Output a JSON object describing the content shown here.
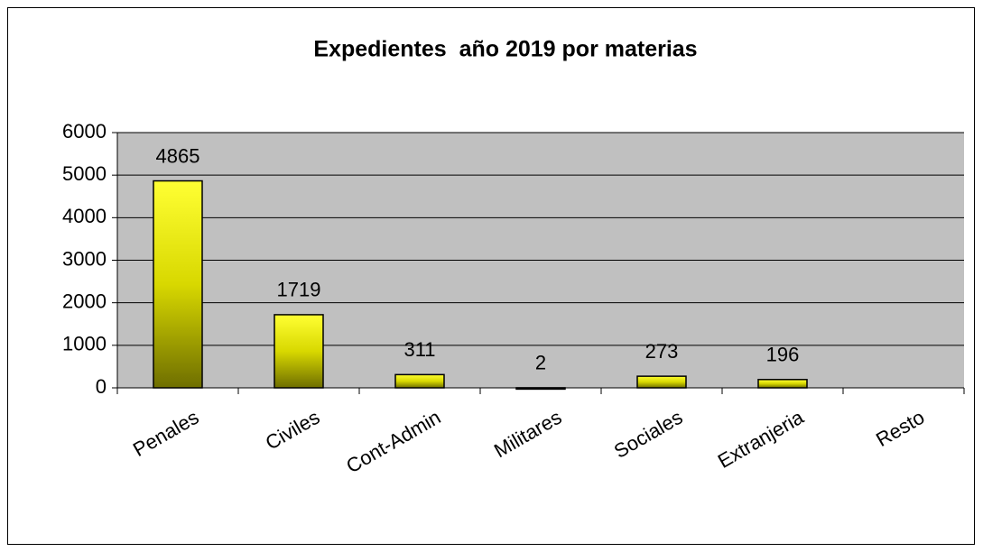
{
  "chart_data": {
    "type": "bar",
    "title": "Expedientes  año 2019 por materias",
    "categories": [
      "Penales",
      "Civiles",
      "Cont-Admin",
      "Militares",
      "Sociales",
      "Extranjeria",
      "Resto"
    ],
    "values": [
      4865,
      1719,
      311,
      2,
      273,
      196,
      null
    ],
    "color": "#ffff00",
    "ylim": [
      0,
      6000
    ],
    "yticks": [
      0,
      1000,
      2000,
      3000,
      4000,
      5000,
      6000
    ],
    "grid": true
  }
}
